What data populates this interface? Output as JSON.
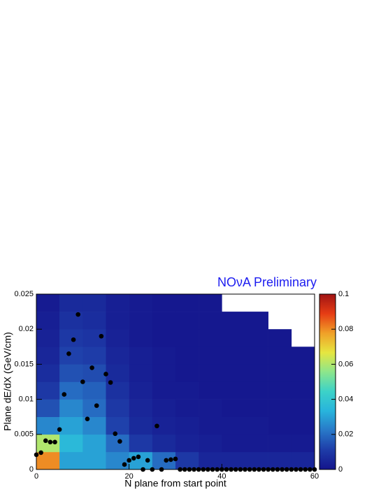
{
  "chart_data": {
    "type": "heatmap",
    "title": "NOνA Preliminary",
    "x_label": "N plane from start point",
    "y_label": "Plane dE/dX (GeV/cm)",
    "xlim": [
      0,
      60
    ],
    "ylim": [
      0,
      0.025
    ],
    "xticks": [
      0,
      20,
      40,
      60
    ],
    "yticks": [
      0,
      0.005,
      0.01,
      0.015,
      0.02,
      0.025
    ],
    "zlim": [
      0,
      0.1
    ],
    "zticks": [
      0,
      0.02,
      0.04,
      0.06,
      0.08,
      0.1
    ],
    "colormap": [
      "#14148c",
      "#1e3ca8",
      "#2878c8",
      "#28b4dc",
      "#3cd2c8",
      "#8ce68c",
      "#e6e640",
      "#f0a028",
      "#e63c14",
      "#a01414"
    ],
    "x_bins": [
      0,
      5,
      10,
      15,
      20,
      25,
      30,
      35,
      40,
      45,
      50,
      55,
      60
    ],
    "y_bins": [
      0,
      0.0025,
      0.005,
      0.0075,
      0.01,
      0.0125,
      0.015,
      0.0175,
      0.02,
      0.0225,
      0.025
    ],
    "z": [
      [
        0.08,
        0.03,
        0.03,
        0.025,
        0.03,
        0.02,
        0.01,
        0.005,
        0.005,
        0.005,
        0.005,
        0.005
      ],
      [
        0.06,
        0.035,
        0.03,
        0.02,
        0.01,
        0.006,
        0.004,
        0.003,
        0.002,
        0.002,
        0.002,
        0.002
      ],
      [
        0.025,
        0.03,
        0.025,
        0.012,
        0.006,
        0.004,
        0.003,
        0.002,
        0.002,
        0.002,
        0.001,
        0.001
      ],
      [
        0.015,
        0.025,
        0.02,
        0.01,
        0.005,
        0.003,
        0.002,
        0.002,
        0.001,
        0.001,
        0.001,
        0.001
      ],
      [
        0.01,
        0.02,
        0.018,
        0.008,
        0.004,
        0.002,
        0.002,
        0.001,
        0.001,
        0.001,
        0.001,
        0.001
      ],
      [
        0.007,
        0.015,
        0.014,
        0.006,
        0.003,
        0.002,
        0.001,
        0.001,
        0.001,
        0.001,
        0.001,
        0.001
      ],
      [
        0.005,
        0.012,
        0.011,
        0.005,
        0.003,
        0.002,
        0.001,
        0.001,
        0.001,
        0.001,
        0.001,
        0.001
      ],
      [
        0.004,
        0.01,
        0.009,
        0.004,
        0.002,
        0.001,
        0.001,
        0.001,
        0.001,
        0.001,
        0.001,
        null
      ],
      [
        0.003,
        0.008,
        0.007,
        0.003,
        0.002,
        0.001,
        0.001,
        0.001,
        0.001,
        0.001,
        null,
        null
      ],
      [
        0.002,
        0.006,
        0.006,
        0.003,
        0.002,
        0.001,
        0.001,
        0.001,
        null,
        null,
        null,
        null
      ]
    ],
    "overlay": {
      "type": "scatter",
      "color": "#000000",
      "x": [
        0,
        1,
        2,
        3,
        4,
        5,
        6,
        7,
        8,
        9,
        10,
        11,
        12,
        13,
        14,
        15,
        16,
        17,
        18,
        19,
        20,
        21,
        22,
        23,
        24,
        25,
        26,
        27,
        28,
        29,
        30,
        31,
        32,
        33,
        34,
        35,
        36,
        37,
        38,
        39,
        40,
        41,
        42,
        43,
        44,
        45,
        46,
        47,
        48,
        49,
        50,
        51,
        52,
        53,
        54,
        55,
        56,
        57,
        58,
        59,
        60
      ],
      "y": [
        0.0021,
        0.0024,
        0.0041,
        0.0039,
        0.0039,
        0.0057,
        0.0107,
        0.0165,
        0.0185,
        0.0221,
        0.0125,
        0.0072,
        0.0145,
        0.0091,
        0.019,
        0.0136,
        0.0124,
        0.0051,
        0.004,
        0.0007,
        0.0013,
        0.0016,
        0.0018,
        0,
        0.0013,
        0,
        0.0062,
        0,
        0.0013,
        0.0014,
        0.0015,
        0,
        0,
        0,
        0,
        0,
        0,
        0,
        0,
        0,
        0,
        0,
        0,
        0,
        0,
        0,
        0,
        0,
        0,
        0,
        0,
        0,
        0,
        0,
        0,
        0,
        0,
        0,
        0,
        0,
        0
      ]
    }
  }
}
